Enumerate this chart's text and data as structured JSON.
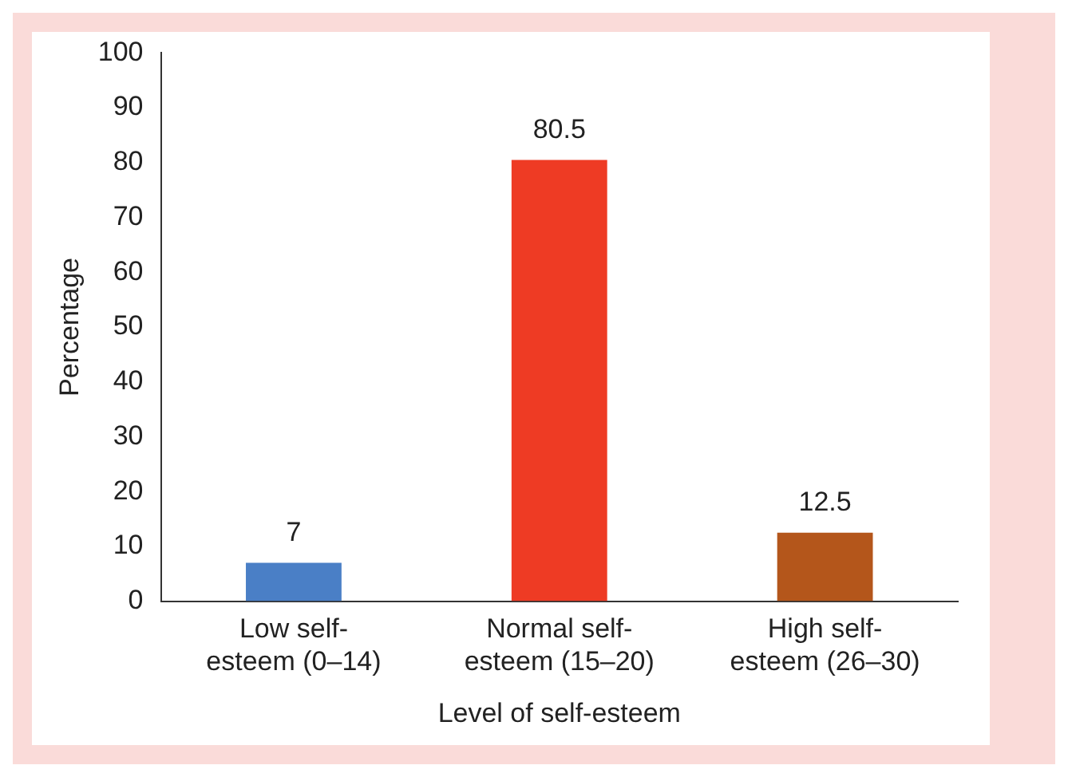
{
  "chart_data": {
    "type": "bar",
    "xlabel": "Level of self-esteem",
    "ylabel": "Percentage",
    "categories": [
      "Low self-esteem (0–14)",
      "Normal self-esteem (15–20)",
      "High self-esteem (26–30)"
    ],
    "values": [
      7,
      80.5,
      12.5
    ],
    "colors": [
      "#4a7fc6",
      "#ee3b24",
      "#b4561b"
    ],
    "ylim": [
      0,
      100
    ],
    "yticks": [
      0,
      10,
      20,
      30,
      40,
      50,
      60,
      70,
      80,
      90,
      100
    ],
    "grid": false,
    "legend": false,
    "data_labels": true
  }
}
